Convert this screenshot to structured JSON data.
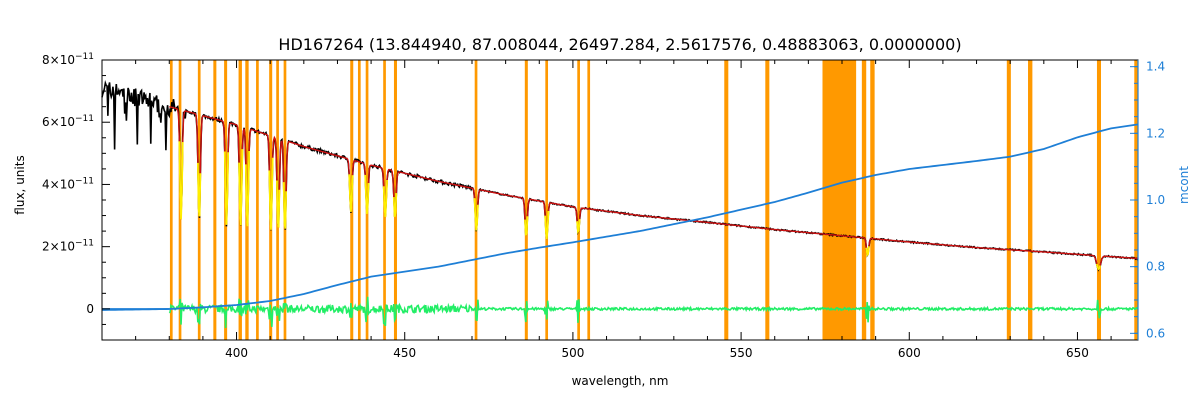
{
  "chart_data": {
    "type": "line",
    "title": "HD167264    (13.844940, 87.008044, 26497.284, 2.5617576, 0.48883063, 0.0000000)",
    "xlabel": "wavelength, nm",
    "ylabel": "flux, units",
    "y2label": "mcont",
    "xlim": [
      360,
      668
    ],
    "ylim": [
      -1e-11,
      8e-11
    ],
    "y2lim": [
      0.58,
      1.42
    ],
    "x_ticks": [
      400,
      450,
      500,
      550,
      600,
      650
    ],
    "x_tick_labels": [
      "400",
      "450",
      "500",
      "550",
      "600",
      "650"
    ],
    "y_ticks": [
      0,
      2e-11,
      4e-11,
      6e-11,
      8e-11
    ],
    "y_tick_labels": [
      {
        "mant": "0",
        "exp": ""
      },
      {
        "mant": "2×10",
        "exp": "−11"
      },
      {
        "mant": "4×10",
        "exp": "−11"
      },
      {
        "mant": "6×10",
        "exp": "−11"
      },
      {
        "mant": "8×10",
        "exp": "−11"
      }
    ],
    "y2_ticks": [
      0.6,
      0.8,
      1.0,
      1.2,
      1.4
    ],
    "y2_tick_labels": [
      "0.6",
      "0.8",
      "1.0",
      "1.2",
      "1.4"
    ],
    "masked_bands_nm": [
      [
        380.2,
        381.0
      ],
      [
        382.8,
        383.6
      ],
      [
        388.5,
        389.3
      ],
      [
        393.1,
        394.0
      ],
      [
        396.3,
        397.2
      ],
      [
        400.6,
        401.6
      ],
      [
        402.6,
        403.6
      ],
      [
        405.8,
        406.6
      ],
      [
        409.7,
        410.6
      ],
      [
        411.8,
        412.6
      ],
      [
        414.0,
        414.8
      ],
      [
        433.8,
        434.7
      ],
      [
        436.1,
        436.9
      ],
      [
        438.4,
        439.2
      ],
      [
        443.6,
        444.4
      ],
      [
        446.8,
        447.7
      ],
      [
        470.8,
        471.6
      ],
      [
        485.7,
        486.6
      ],
      [
        491.8,
        492.6
      ],
      [
        501.3,
        502.1
      ],
      [
        504.3,
        505.1
      ],
      [
        545.0,
        546.2
      ],
      [
        557.2,
        558.4
      ],
      [
        574.2,
        584.2
      ],
      [
        585.9,
        587.2
      ],
      [
        588.4,
        589.7
      ],
      [
        629.0,
        630.2
      ],
      [
        635.3,
        636.6
      ],
      [
        655.8,
        657.0
      ],
      [
        666.9,
        668.0
      ]
    ],
    "absorption_lines_nm": [
      383.5,
      388.9,
      397.0,
      401.2,
      403.2,
      410.2,
      412.4,
      414.4,
      434.0,
      438.8,
      444.2,
      447.1,
      471.3,
      486.1,
      492.2,
      501.6,
      587.6,
      656.3
    ],
    "flux_continuum": {
      "x": [
        360,
        380,
        400,
        420,
        440,
        460,
        480,
        500,
        520,
        540,
        560,
        580,
        600,
        620,
        640,
        660,
        668
      ],
      "y": [
        7.1e-11,
        6.5e-11,
        5.92e-11,
        5.22e-11,
        4.62e-11,
        4.1e-11,
        3.66e-11,
        3.28e-11,
        3e-11,
        2.78e-11,
        2.55e-11,
        2.35e-11,
        2.15e-11,
        1.97e-11,
        1.83e-11,
        1.68e-11,
        1.62e-11
      ]
    },
    "mcont": {
      "x": [
        360,
        380,
        390,
        400,
        410,
        420,
        430,
        440,
        450,
        460,
        470,
        480,
        490,
        500,
        520,
        540,
        560,
        570,
        580,
        590,
        600,
        610,
        620,
        630,
        640,
        650,
        660,
        668
      ],
      "y": [
        0.67,
        0.673,
        0.678,
        0.685,
        0.697,
        0.718,
        0.745,
        0.77,
        0.785,
        0.8,
        0.82,
        0.84,
        0.857,
        0.873,
        0.907,
        0.948,
        0.994,
        1.022,
        1.052,
        1.075,
        1.093,
        1.105,
        1.117,
        1.13,
        1.153,
        1.188,
        1.215,
        1.227
      ]
    },
    "series": [
      {
        "name": "observed",
        "color": "#000000"
      },
      {
        "name": "model",
        "color": "#cc1111"
      },
      {
        "name": "lines",
        "color": "#ffee00"
      },
      {
        "name": "residual",
        "color": "#22ee66"
      },
      {
        "name": "mcont",
        "color": "#1e7fd6"
      },
      {
        "name": "mask",
        "color": "#ff9900"
      }
    ],
    "grid": false
  }
}
